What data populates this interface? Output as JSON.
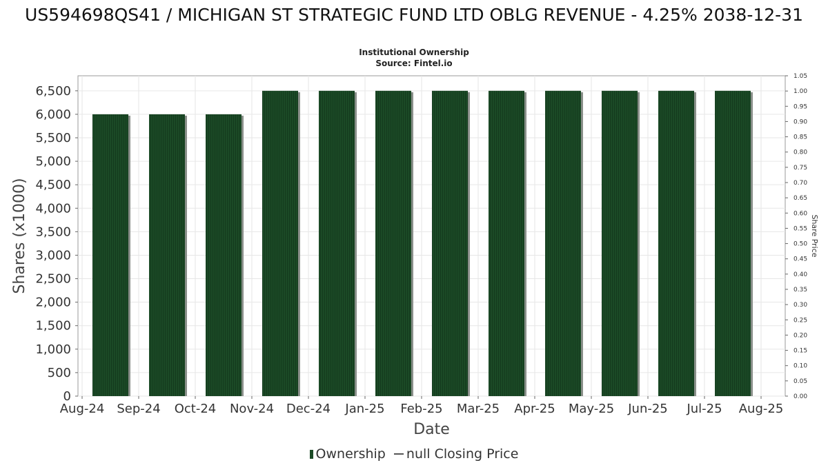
{
  "title": "US594698QS41 / MICHIGAN ST STRATEGIC FUND LTD OBLG REVENUE - 4.25% 2038-12-31",
  "subtitle_lines": [
    "Institutional Ownership",
    "Source: Fintel.io"
  ],
  "legend": {
    "ownership": "Ownership",
    "price": "null Closing Price"
  },
  "colors": {
    "bar": "#1b4a26",
    "bar_shadow": "#8a8f8a",
    "grid": "#e6e6e6",
    "plot_border": "#999999"
  },
  "chart_data": {
    "type": "bar",
    "xlabel": "Date",
    "ylabel": "Shares (x1000)",
    "ylabel_right": "Share Price",
    "x_ticks": [
      "Aug-24",
      "Sep-24",
      "Oct-24",
      "Nov-24",
      "Dec-24",
      "Jan-25",
      "Feb-25",
      "Mar-25",
      "Apr-25",
      "May-25",
      "Jun-25",
      "Jul-25",
      "Aug-25"
    ],
    "categories": [
      "Sep-24",
      "Oct-24",
      "Nov-24",
      "Dec-24",
      "Jan-25",
      "Feb-25",
      "Mar-25",
      "Apr-25",
      "May-25",
      "Jun-25",
      "Jul-25",
      "Aug-25"
    ],
    "series": [
      {
        "name": "Ownership",
        "values": [
          6000,
          6000,
          6000,
          6500,
          6500,
          6500,
          6500,
          6500,
          6500,
          6500,
          6500,
          6500
        ]
      }
    ],
    "ylim": [
      0,
      6820
    ],
    "y_ticks": [
      0,
      500,
      1000,
      1500,
      2000,
      2500,
      3000,
      3500,
      4000,
      4500,
      5000,
      5500,
      6000,
      6500
    ],
    "y_tick_labels": [
      "0",
      "500",
      "1,000",
      "1,500",
      "2,000",
      "2,500",
      "3,000",
      "3,500",
      "4,000",
      "4,500",
      "5,000",
      "5,500",
      "6,000",
      "6,500"
    ],
    "y2lim": [
      0,
      1.05
    ],
    "y2_tick_labels": [
      "0.00",
      "0.05",
      "0.10",
      "0.15",
      "0.20",
      "0.25",
      "0.30",
      "0.35",
      "0.40",
      "0.45",
      "0.50",
      "0.55",
      "0.60",
      "0.65",
      "0.70",
      "0.75",
      "0.80",
      "0.85",
      "0.90",
      "0.95",
      "1.00",
      "1.05"
    ],
    "grid": true,
    "legend_position": "bottom"
  }
}
